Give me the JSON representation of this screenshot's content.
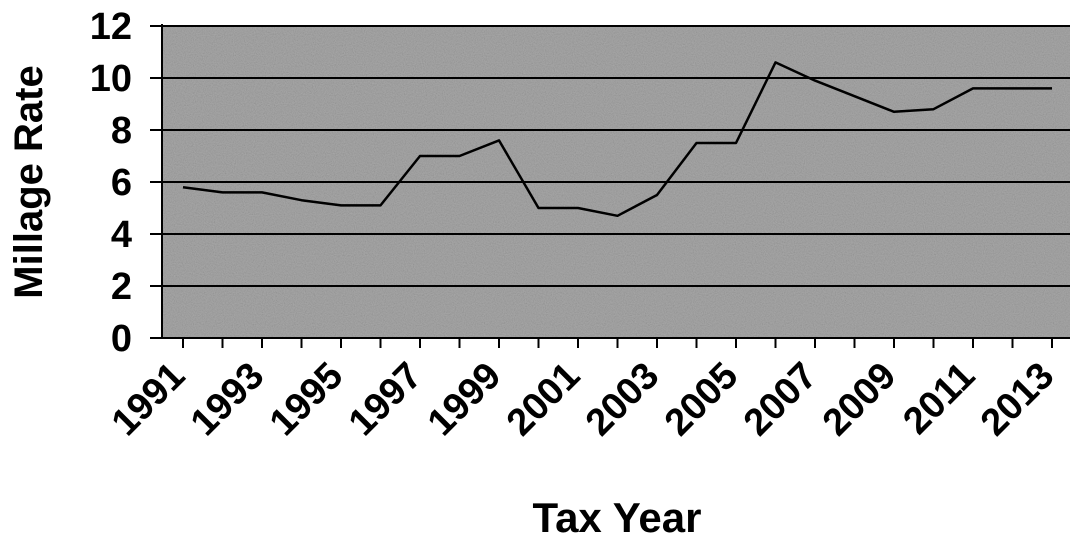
{
  "chart_data": {
    "type": "line",
    "xlabel": "Tax Year",
    "ylabel": "Millage Rate",
    "ylim": [
      0,
      12
    ],
    "yticks": [
      "0",
      "2",
      "4",
      "6",
      "8",
      "10",
      "12"
    ],
    "x_tick_labels": [
      "1991",
      "1993",
      "1995",
      "1997",
      "1999",
      "2001",
      "2003",
      "2005",
      "2007",
      "2009",
      "2011",
      "2013"
    ],
    "grid": "horizontal",
    "plot_background": "#a9a9a9",
    "line_color": "#000000",
    "series": [
      {
        "x": [
          1991,
          1992,
          1993,
          1994,
          1995,
          1996,
          1997,
          1998,
          1999,
          2000,
          2001,
          2002,
          2003,
          2004,
          2005,
          2006,
          2007,
          2008,
          2009,
          2010,
          2011,
          2012,
          2013
        ],
        "values": [
          5.8,
          5.6,
          5.6,
          5.3,
          5.1,
          5.1,
          7.0,
          7.0,
          7.6,
          5.0,
          5.0,
          4.7,
          5.5,
          7.5,
          7.5,
          10.6,
          9.9,
          9.3,
          8.7,
          8.8,
          9.6,
          9.6,
          9.6
        ]
      }
    ]
  }
}
